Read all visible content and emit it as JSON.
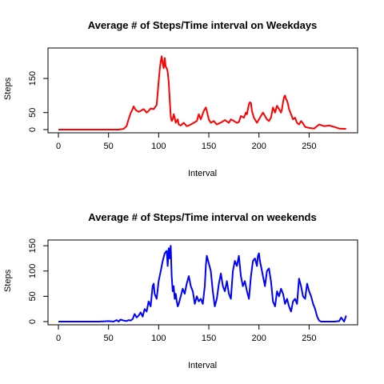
{
  "chart_data": [
    {
      "type": "line",
      "title": "Average # of Steps/Time interval on Weekdays",
      "xlabel": "Interval",
      "ylabel": "Steps",
      "xlim": [
        0,
        288
      ],
      "ylim": [
        0,
        230
      ],
      "xticks": [
        0,
        50,
        100,
        150,
        200,
        250
      ],
      "yticks": [
        0,
        50,
        150
      ],
      "grid": false,
      "color": "#ff0000",
      "x": [
        0,
        10,
        20,
        30,
        40,
        50,
        60,
        65,
        68,
        70,
        72,
        74,
        75,
        77,
        80,
        82,
        85,
        88,
        90,
        92,
        95,
        98,
        100,
        101,
        102,
        103,
        104,
        105,
        106,
        107,
        108,
        109,
        110,
        111,
        112,
        113,
        114,
        115,
        116,
        117,
        118,
        119,
        120,
        122,
        125,
        128,
        130,
        132,
        135,
        138,
        140,
        142,
        145,
        146,
        147,
        148,
        150,
        152,
        155,
        158,
        160,
        163,
        166,
        170,
        172,
        175,
        178,
        180,
        182,
        185,
        187,
        188,
        189,
        190,
        191,
        192,
        193,
        195,
        198,
        200,
        202,
        204,
        206,
        208,
        210,
        212,
        214,
        216,
        218,
        220,
        222,
        223,
        224,
        225,
        226,
        227,
        228,
        229,
        230,
        232,
        234,
        236,
        238,
        240,
        242,
        244,
        246,
        250,
        255,
        260,
        265,
        270,
        275,
        280,
        287
      ],
      "y": [
        0,
        0,
        0,
        0,
        0,
        0,
        0,
        2,
        10,
        30,
        48,
        60,
        68,
        58,
        52,
        55,
        60,
        50,
        55,
        62,
        60,
        72,
        140,
        175,
        200,
        215,
        195,
        180,
        210,
        185,
        180,
        170,
        140,
        90,
        40,
        25,
        30,
        45,
        35,
        20,
        25,
        30,
        15,
        12,
        20,
        10,
        12,
        15,
        20,
        25,
        45,
        30,
        55,
        60,
        65,
        55,
        30,
        20,
        25,
        15,
        18,
        22,
        28,
        20,
        30,
        25,
        20,
        22,
        40,
        35,
        50,
        45,
        60,
        75,
        80,
        78,
        55,
        35,
        20,
        30,
        40,
        50,
        40,
        30,
        25,
        35,
        65,
        50,
        70,
        60,
        50,
        60,
        80,
        95,
        100,
        90,
        85,
        75,
        60,
        45,
        30,
        35,
        20,
        15,
        25,
        18,
        8,
        5,
        3,
        15,
        10,
        12,
        8,
        3,
        2
      ]
    },
    {
      "type": "line",
      "title": "Average # of Steps/Time interval on weekends",
      "xlabel": "Interval",
      "ylabel": "Steps",
      "xlim": [
        0,
        288
      ],
      "ylim": [
        0,
        155
      ],
      "xticks": [
        0,
        50,
        100,
        150,
        200,
        250
      ],
      "yticks": [
        0,
        50,
        100,
        150
      ],
      "grid": false,
      "color": "#0000ff",
      "x": [
        0,
        10,
        20,
        30,
        40,
        50,
        55,
        58,
        60,
        62,
        65,
        68,
        70,
        72,
        74,
        75,
        76,
        78,
        80,
        82,
        84,
        86,
        88,
        90,
        92,
        94,
        95,
        96,
        98,
        100,
        102,
        104,
        106,
        108,
        109,
        110,
        111,
        112,
        113,
        114,
        115,
        116,
        117,
        118,
        119,
        120,
        122,
        124,
        126,
        128,
        130,
        132,
        134,
        136,
        138,
        140,
        142,
        144,
        146,
        147,
        148,
        150,
        152,
        154,
        156,
        158,
        160,
        162,
        164,
        166,
        168,
        170,
        172,
        174,
        176,
        178,
        180,
        182,
        184,
        186,
        188,
        190,
        192,
        194,
        196,
        198,
        199,
        200,
        201,
        202,
        204,
        206,
        208,
        210,
        212,
        214,
        216,
        218,
        220,
        222,
        224,
        226,
        228,
        230,
        232,
        234,
        236,
        238,
        240,
        242,
        244,
        246,
        248,
        250,
        252,
        254,
        256,
        258,
        260,
        262,
        265,
        270,
        275,
        280,
        282,
        285,
        287
      ],
      "y": [
        0,
        0,
        0,
        0,
        0,
        1,
        0,
        3,
        0,
        4,
        2,
        1,
        3,
        2,
        5,
        10,
        15,
        8,
        12,
        18,
        10,
        25,
        20,
        40,
        30,
        70,
        75,
        55,
        45,
        80,
        100,
        120,
        135,
        140,
        110,
        145,
        125,
        150,
        90,
        60,
        70,
        45,
        55,
        40,
        30,
        35,
        50,
        65,
        55,
        75,
        90,
        70,
        60,
        35,
        50,
        40,
        45,
        35,
        70,
        110,
        130,
        115,
        100,
        60,
        30,
        45,
        75,
        95,
        70,
        60,
        80,
        55,
        45,
        100,
        120,
        110,
        130,
        90,
        70,
        80,
        60,
        45,
        90,
        120,
        125,
        110,
        130,
        135,
        120,
        110,
        90,
        70,
        100,
        105,
        80,
        40,
        30,
        60,
        50,
        65,
        55,
        35,
        45,
        30,
        20,
        40,
        45,
        35,
        85,
        70,
        50,
        45,
        75,
        60,
        50,
        35,
        25,
        10,
        2,
        0,
        0,
        0,
        0,
        1,
        8,
        0,
        12
      ]
    }
  ]
}
